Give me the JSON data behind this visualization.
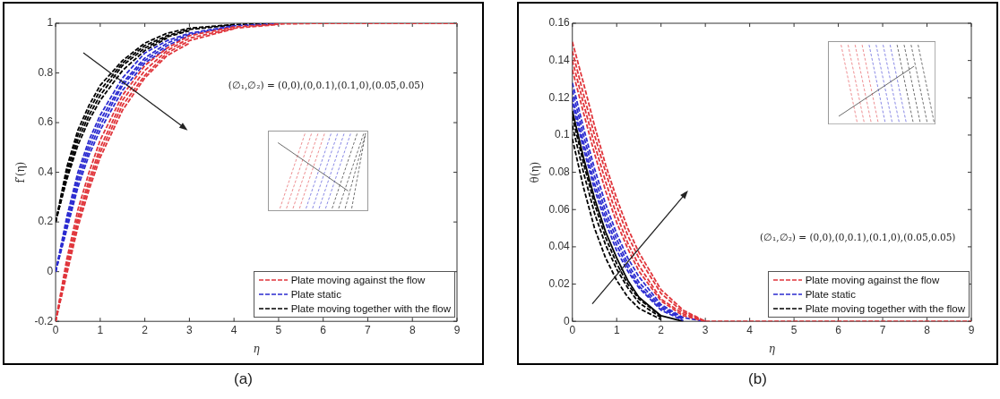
{
  "chart_data": [
    {
      "type": "line",
      "title": "(a)",
      "xlabel": "η",
      "ylabel": "f′(η)",
      "x": [
        0,
        0.25,
        0.5,
        0.75,
        1,
        1.5,
        2,
        2.5,
        3,
        4,
        5,
        6,
        9
      ],
      "xlim": [
        0,
        9
      ],
      "xticks": [
        0,
        1,
        2,
        3,
        4,
        5,
        6,
        7,
        8,
        9
      ],
      "ylim": [
        -0.2,
        1
      ],
      "yticks": [
        -0.2,
        0,
        0.2,
        0.4,
        0.6,
        0.8,
        1
      ],
      "grid": false,
      "legend": "bottom right",
      "marker": "none",
      "line_style": "dashed",
      "annotations": [
        "(∅₁,∅₂) = (0,0),(0,0.1),(0.1,0),(0.05,0.05)"
      ],
      "series": [
        {
          "name": "Plate moving against the flow",
          "color": "#e0353b",
          "values": [
            -0.2,
            0.05,
            0.25,
            0.4,
            0.53,
            0.71,
            0.83,
            0.9,
            0.95,
            0.985,
            0.997,
            1,
            1
          ]
        },
        {
          "color": "#e0353b",
          "values": [
            -0.2,
            0.03,
            0.22,
            0.37,
            0.5,
            0.69,
            0.81,
            0.89,
            0.94,
            0.98,
            0.995,
            null,
            null
          ]
        },
        {
          "color": "#e0353b",
          "values": [
            -0.2,
            0.01,
            0.2,
            0.35,
            0.48,
            0.67,
            0.79,
            0.88,
            0.93,
            0.978,
            null,
            null,
            null
          ]
        },
        {
          "color": "#e0353b",
          "values": [
            -0.2,
            -0.01,
            0.18,
            0.33,
            0.46,
            0.65,
            0.78,
            0.87,
            0.92,
            null,
            null,
            null,
            null
          ]
        },
        {
          "name": "Plate static",
          "color": "#2b2bd0",
          "values": [
            0,
            0.22,
            0.4,
            0.53,
            0.63,
            0.78,
            0.88,
            0.93,
            0.96,
            0.99,
            0.998,
            null,
            null
          ]
        },
        {
          "color": "#2b2bd0",
          "values": [
            0,
            0.2,
            0.38,
            0.51,
            0.61,
            0.76,
            0.86,
            0.92,
            0.955,
            0.988,
            null,
            null,
            null
          ]
        },
        {
          "color": "#2b2bd0",
          "values": [
            0,
            0.18,
            0.36,
            0.49,
            0.59,
            0.75,
            0.85,
            0.91,
            0.95,
            null,
            null,
            null,
            null
          ]
        },
        {
          "color": "#2b2bd0",
          "values": [
            0,
            0.17,
            0.34,
            0.47,
            0.57,
            0.73,
            0.84,
            0.9,
            null,
            null,
            null,
            null,
            null
          ]
        },
        {
          "name": "Plate moving together with the flow",
          "color": "#000000",
          "values": [
            0.2,
            0.42,
            0.57,
            0.67,
            0.75,
            0.85,
            0.92,
            0.96,
            0.98,
            0.995,
            1,
            null,
            null
          ]
        },
        {
          "color": "#000000",
          "values": [
            0.2,
            0.4,
            0.55,
            0.65,
            0.73,
            0.84,
            0.91,
            0.95,
            0.975,
            0.993,
            null,
            null,
            null
          ]
        },
        {
          "color": "#000000",
          "values": [
            0.2,
            0.38,
            0.53,
            0.63,
            0.71,
            0.83,
            0.9,
            0.945,
            0.97,
            null,
            null,
            null,
            null
          ]
        },
        {
          "color": "#000000",
          "values": [
            0.2,
            0.37,
            0.51,
            0.61,
            0.69,
            0.81,
            0.89,
            0.94,
            null,
            null,
            null,
            null,
            null
          ]
        }
      ]
    },
    {
      "type": "line",
      "title": "(b)",
      "xlabel": "η",
      "ylabel": "θ(η)",
      "x": [
        0,
        0.25,
        0.5,
        0.75,
        1,
        1.25,
        1.5,
        2,
        2.5,
        3,
        4,
        9
      ],
      "xlim": [
        0,
        9
      ],
      "xticks": [
        0,
        1,
        2,
        3,
        4,
        5,
        6,
        7,
        8,
        9
      ],
      "ylim": [
        0,
        0.16
      ],
      "yticks": [
        0,
        0.02,
        0.04,
        0.06,
        0.08,
        0.1,
        0.12,
        0.14,
        0.16
      ],
      "grid": false,
      "legend": "bottom right",
      "marker": "none",
      "line_style": "dashed",
      "annotations": [
        "(∅₁,∅₂) = (0,0),(0,0.1),(0.1,0),(0.05,0.05)"
      ],
      "series": [
        {
          "name": "Plate moving against the flow",
          "color": "#e0353b",
          "values": [
            0.15,
            0.128,
            0.105,
            0.084,
            0.066,
            0.05,
            0.037,
            0.017,
            0.006,
            0,
            0,
            0
          ]
        },
        {
          "color": "#e0353b",
          "values": [
            0.145,
            0.122,
            0.1,
            0.08,
            0.062,
            0.046,
            0.034,
            0.015,
            0.005,
            0,
            null,
            null
          ]
        },
        {
          "color": "#e0353b",
          "values": [
            0.14,
            0.117,
            0.095,
            0.075,
            0.057,
            0.042,
            0.03,
            0.012,
            0.004,
            0,
            null,
            null
          ]
        },
        {
          "color": "#e0353b",
          "values": [
            0.135,
            0.112,
            0.09,
            0.07,
            0.053,
            0.039,
            0.027,
            0.011,
            0.003,
            0,
            null,
            null
          ]
        },
        {
          "name": "Plate static",
          "color": "#2b2bd0",
          "values": [
            0.128,
            0.104,
            0.082,
            0.063,
            0.047,
            0.034,
            0.024,
            0.009,
            0.002,
            0,
            null,
            null
          ]
        },
        {
          "color": "#2b2bd0",
          "values": [
            0.124,
            0.1,
            0.078,
            0.059,
            0.044,
            0.031,
            0.021,
            0.008,
            0.0015,
            null,
            null,
            null
          ]
        },
        {
          "color": "#2b2bd0",
          "values": [
            0.12,
            0.096,
            0.074,
            0.056,
            0.041,
            0.029,
            0.019,
            0.007,
            0.001,
            null,
            null,
            null
          ]
        },
        {
          "color": "#2b2bd0",
          "values": [
            0.117,
            0.093,
            0.071,
            0.053,
            0.038,
            0.027,
            0.018,
            0.006,
            0.0005,
            null,
            null,
            null
          ]
        },
        {
          "name": "Plate moving together with the flow",
          "color": "#000000",
          "line_style": "solid",
          "values": [
            0.113,
            0.088,
            0.066,
            0.048,
            0.034,
            0.022,
            0.013,
            0.003,
            0,
            null,
            null,
            null
          ]
        },
        {
          "color": "#000000",
          "values": [
            0.11,
            0.085,
            0.063,
            0.045,
            0.031,
            0.02,
            0.012,
            0.0028,
            null,
            null,
            null,
            null
          ]
        },
        {
          "color": "#000000",
          "values": [
            0.105,
            0.08,
            0.058,
            0.041,
            0.028,
            0.018,
            0.01,
            0.002,
            null,
            null,
            null,
            null
          ]
        },
        {
          "color": "#000000",
          "values": [
            0.098,
            0.072,
            0.05,
            0.034,
            0.022,
            0.013,
            0.007,
            0.001,
            null,
            null,
            null,
            null
          ]
        }
      ]
    }
  ]
}
